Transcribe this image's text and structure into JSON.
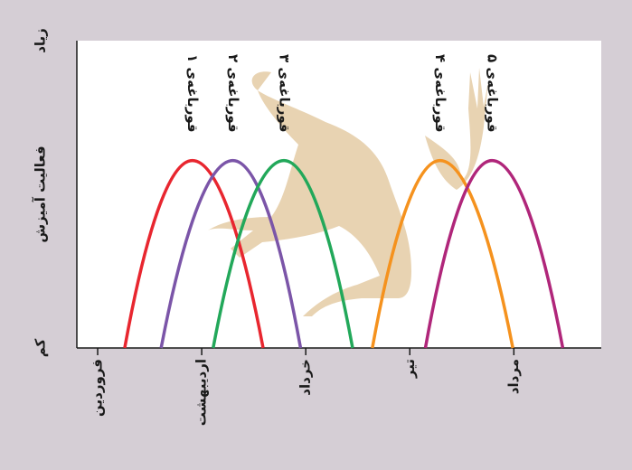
{
  "chart_data": {
    "type": "line",
    "ylabel": "فعالیت آمیزش",
    "xlim": [
      -0.2,
      4.84
    ],
    "xticks": [
      {
        "value": 0,
        "label": "فروردین"
      },
      {
        "value": 1,
        "label": "اردیبهشت"
      },
      {
        "value": 2,
        "label": "خرداد"
      },
      {
        "value": 3,
        "label": "تیر"
      },
      {
        "value": 4,
        "label": "مرداد"
      }
    ],
    "ylim": [
      0,
      100
    ],
    "yticks": [
      {
        "value": 0,
        "label": "کم"
      },
      {
        "value": 100,
        "label": "زیاد"
      }
    ],
    "series": [
      {
        "name": "قورباغه‌ی ۱",
        "color": "#e8262f",
        "x": [
          0.26,
          0.91,
          1.59
        ],
        "values": [
          0,
          61,
          0
        ]
      },
      {
        "name": "قورباغه‌ی ۲",
        "color": "#7b55a8",
        "x": [
          0.61,
          1.3,
          1.95
        ],
        "values": [
          0,
          61,
          0
        ]
      },
      {
        "name": "قورباغه‌ی ۳",
        "color": "#22a85a",
        "x": [
          1.11,
          1.79,
          2.45
        ],
        "values": [
          0,
          61,
          0
        ]
      },
      {
        "name": "قورباغه‌ی ۴",
        "color": "#f5921e",
        "x": [
          2.64,
          3.29,
          3.99
        ],
        "values": [
          0,
          61,
          0
        ]
      },
      {
        "name": "قورباغه‌ی ۵",
        "color": "#b0267a",
        "x": [
          3.15,
          3.79,
          4.47
        ],
        "values": [
          0,
          61,
          0
        ]
      }
    ]
  }
}
